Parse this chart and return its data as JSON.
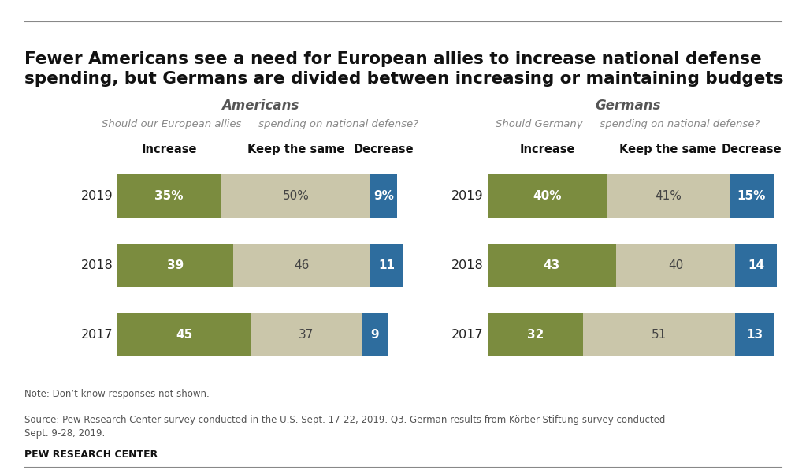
{
  "title": "Fewer Americans see a need for European allies to increase national defense\nspending, but Germans are divided between increasing or maintaining budgets",
  "title_fontsize": 15.5,
  "subtitle_americans": "Americans",
  "subtitle_germans": "Germans",
  "question_americans": "Should our European allies __ spending on national defense?",
  "question_germans": "Should Germany __ spending on national defense?",
  "col_headers": [
    "Increase",
    "Keep the same",
    "Decrease"
  ],
  "years": [
    "2019",
    "2018",
    "2017"
  ],
  "americans": {
    "increase": [
      35,
      39,
      45
    ],
    "keep": [
      50,
      46,
      37
    ],
    "decrease": [
      9,
      11,
      9
    ]
  },
  "germans": {
    "increase": [
      40,
      43,
      32
    ],
    "keep": [
      41,
      40,
      51
    ],
    "decrease": [
      15,
      14,
      13
    ]
  },
  "color_increase": "#7b8c3f",
  "color_keep": "#cac6aa",
  "color_decrease": "#2e6d9e",
  "background_color": "#ffffff",
  "note": "Note: Don’t know responses not shown.",
  "source": "Source: Pew Research Center survey conducted in the U.S. Sept. 17-22, 2019. Q3. German results from Körber-Stiftung survey conducted\nSept. 9-28, 2019.",
  "footer": "PEW RESEARCH CENTER",
  "title_line_color": "#aaaaaa",
  "bottom_line_color": "#aaaaaa"
}
